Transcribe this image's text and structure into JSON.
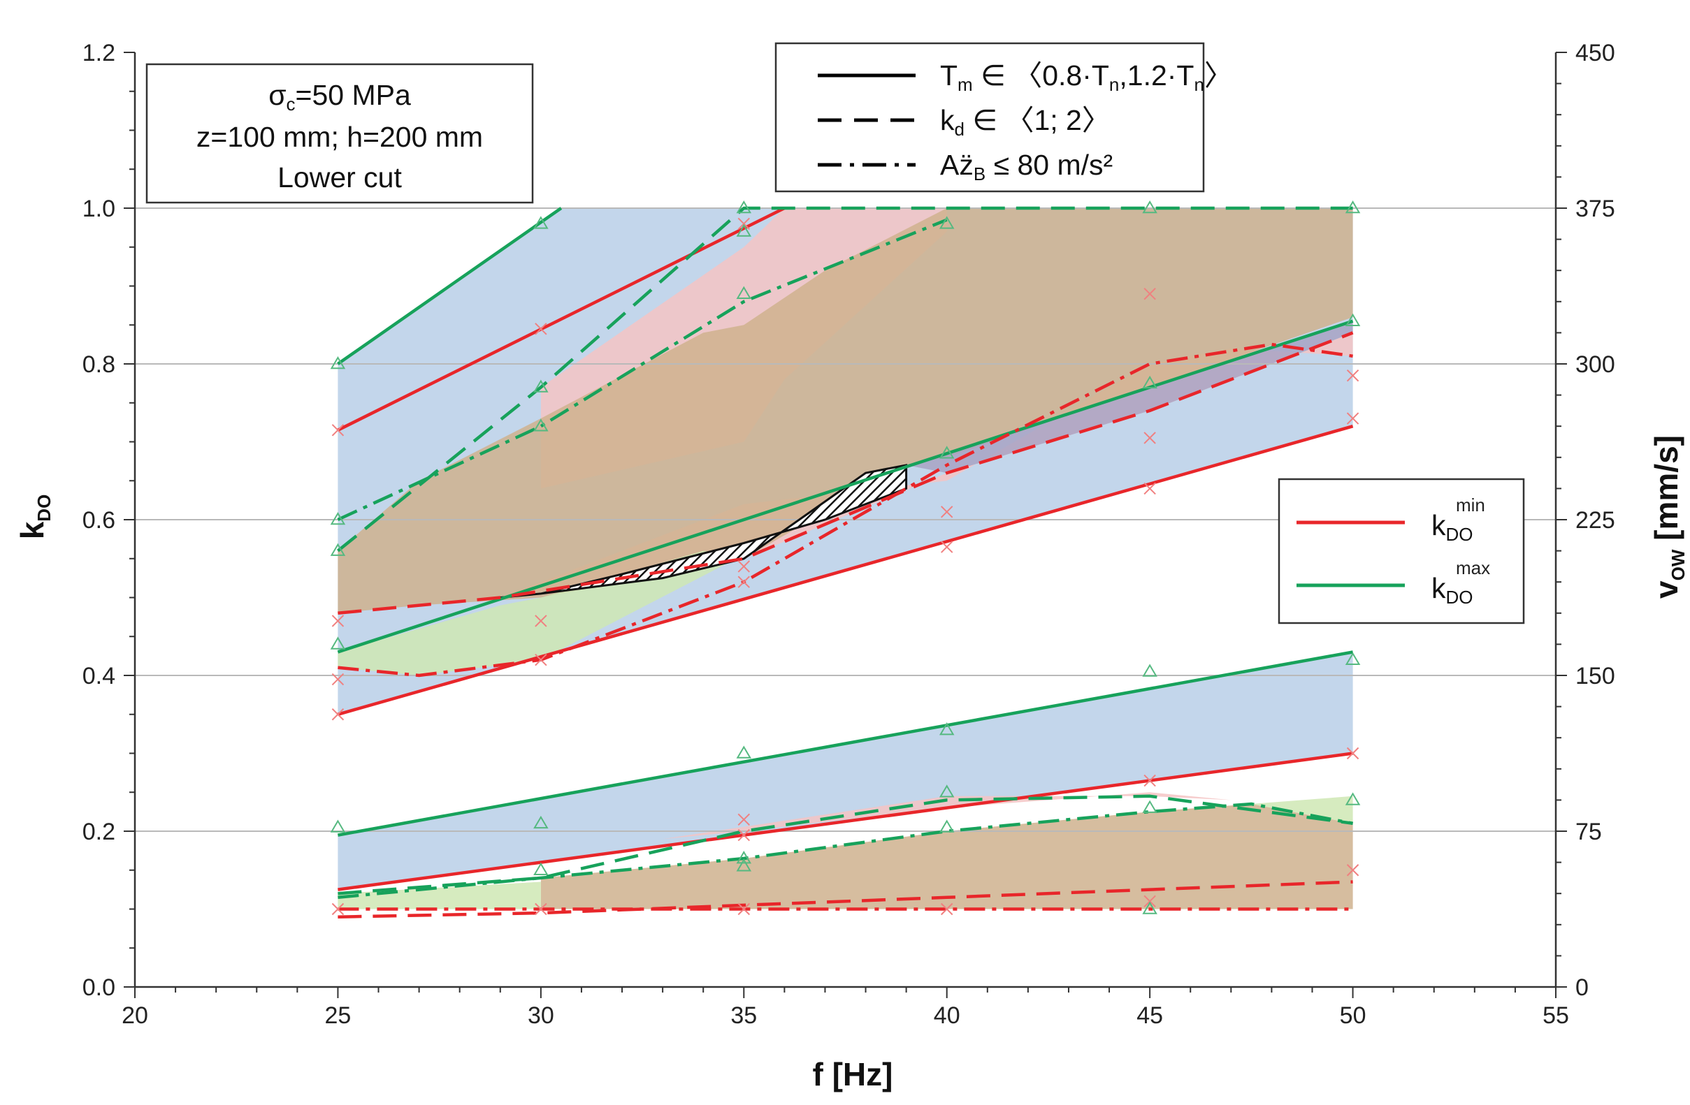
{
  "chart_data": {
    "type": "line",
    "title": "",
    "xlabel": "f  [Hz]",
    "ylabel": "k",
    "ylabel_sub": "DO",
    "y2label": "v",
    "y2label_sub": "OW",
    "y2label_unit": " [mm/s]",
    "xlim": [
      20,
      55
    ],
    "ylim": [
      0,
      1.2
    ],
    "y2lim": [
      0,
      450
    ],
    "xticks": [
      "20",
      "25",
      "30",
      "35",
      "40",
      "45",
      "50",
      "55"
    ],
    "yticks": [
      "0.0",
      "0.2",
      "0.4",
      "0.6",
      "0.8",
      "1.0",
      "1.2"
    ],
    "y2ticks": [
      "0",
      "75",
      "150",
      "225",
      "300",
      "375",
      "450"
    ],
    "grid": "horizontal",
    "conditions_box": {
      "line1_a": "σ",
      "line1_sub": "c",
      "line1_b": "=50 MPa",
      "line2": "z=100 mm; h=200 mm",
      "line3": "Lower cut"
    },
    "style_legend": {
      "solid_a": "T",
      "solid_sub": "m",
      "solid_b": " ∈ 〈0.8·T",
      "solid_sub2": "n",
      "solid_c": ",1.2·T",
      "solid_sub3": "n",
      "solid_d": "〉",
      "dashed_a": "k",
      "dashed_sub": "d",
      "dashed_b": " ∈ 〈1; 2〉",
      "dashdot_a": "Az̈",
      "dashdot_sub": "B",
      "dashdot_b": " ≤ 80 m/s²"
    },
    "color_legend": [
      {
        "name": "k",
        "sub": "DO",
        "sup": "min",
        "color": "#e8262a"
      },
      {
        "name": "k",
        "sub": "DO",
        "sup": "max",
        "color": "#17a25b"
      }
    ],
    "colors": {
      "kmin": "#e8262a",
      "kmax": "#17a25b",
      "fill_blue": "#b8cfe8",
      "fill_red": "#f5c4c4",
      "fill_green": "#cfe8b4",
      "fill_brown": "#cfb28e",
      "fill_purple": "#a8a3c4",
      "fill_teal": "#a7cfb5"
    },
    "fills": [
      {
        "color": "blue",
        "x": [
          25,
          30.5,
          50,
          50,
          25
        ],
        "y": [
          0.8,
          1.0,
          1.0,
          0.72,
          0.35
        ]
      },
      {
        "color": "blue",
        "x": [
          25,
          50,
          50,
          25
        ],
        "y": [
          0.195,
          0.43,
          0.3,
          0.125
        ]
      },
      {
        "color": "red",
        "x": [
          30,
          35,
          36,
          40,
          40,
          36,
          35,
          30
        ],
        "y": [
          0.77,
          0.95,
          1.0,
          1.0,
          0.97,
          0.78,
          0.7,
          0.64
        ]
      },
      {
        "color": "red",
        "x": [
          29,
          35,
          40,
          45,
          47,
          50,
          50,
          45,
          40,
          35,
          29
        ],
        "y": [
          0.5,
          0.62,
          0.65,
          0.8,
          0.82,
          0.81,
          0.84,
          0.74,
          0.66,
          0.55,
          0.5
        ]
      },
      {
        "color": "red",
        "x": [
          33,
          40,
          45,
          47,
          45,
          40,
          35,
          33
        ],
        "y": [
          0.19,
          0.245,
          0.245,
          0.24,
          0.25,
          0.23,
          0.2,
          0.19
        ]
      },
      {
        "color": "brown",
        "x": [
          25,
          27,
          30,
          34,
          35,
          37,
          40,
          50,
          50,
          45,
          40,
          39,
          35,
          30,
          27,
          25
        ],
        "y": [
          0.56,
          0.65,
          0.73,
          0.84,
          0.85,
          0.92,
          1.0,
          1.0,
          0.86,
          0.77,
          0.68,
          0.67,
          0.55,
          0.5,
          0.49,
          0.48
        ]
      },
      {
        "color": "brown",
        "x": [
          30,
          35,
          40,
          45,
          47.5,
          50,
          50,
          45,
          40,
          35,
          30
        ],
        "y": [
          0.14,
          0.165,
          0.2,
          0.225,
          0.235,
          0.21,
          0.1,
          0.1,
          0.1,
          0.1,
          0.1
        ]
      },
      {
        "color": "green",
        "x": [
          25,
          29,
          30,
          34,
          35,
          30,
          27,
          25
        ],
        "y": [
          0.43,
          0.49,
          0.5,
          0.56,
          0.555,
          0.42,
          0.4,
          0.41
        ]
      },
      {
        "color": "green",
        "x": [
          25,
          30,
          30,
          25
        ],
        "y": [
          0.12,
          0.135,
          0.1,
          0.1
        ]
      },
      {
        "color": "green",
        "x": [
          47.5,
          50,
          50
        ],
        "y": [
          0.235,
          0.245,
          0.21
        ]
      },
      {
        "color": "purple",
        "x": [
          39,
          45,
          48,
          50,
          50,
          45,
          40,
          39
        ],
        "y": [
          0.67,
          0.77,
          0.82,
          0.855,
          0.84,
          0.74,
          0.66,
          0.67
        ]
      }
    ],
    "feasible_region": {
      "x": [
        29,
        30,
        32,
        35,
        37,
        39,
        39,
        38,
        35,
        33,
        30,
        29
      ],
      "y": [
        0.5,
        0.505,
        0.53,
        0.57,
        0.6,
        0.64,
        0.67,
        0.66,
        0.55,
        0.525,
        0.505,
        0.5
      ]
    },
    "series": [
      {
        "group": "kmax",
        "style": "solid",
        "x": [
          25,
          30.5
        ],
        "y": [
          0.8,
          1.0
        ]
      },
      {
        "group": "kmin",
        "style": "solid",
        "x": [
          25,
          36
        ],
        "y": [
          0.715,
          1.0
        ]
      },
      {
        "group": "kmax",
        "style": "solid",
        "x": [
          25,
          50
        ],
        "y": [
          0.43,
          0.855
        ]
      },
      {
        "group": "kmin",
        "style": "solid",
        "x": [
          25,
          50
        ],
        "y": [
          0.35,
          0.72
        ]
      },
      {
        "group": "kmax",
        "style": "solid",
        "x": [
          25,
          50
        ],
        "y": [
          0.195,
          0.43
        ]
      },
      {
        "group": "kmin",
        "style": "solid",
        "x": [
          25,
          50
        ],
        "y": [
          0.125,
          0.3
        ]
      },
      {
        "group": "kmax",
        "style": "dashed",
        "x": [
          25,
          30,
          35,
          40,
          45,
          50
        ],
        "y": [
          0.56,
          0.77,
          1.0,
          1.0,
          1.0,
          1.0
        ]
      },
      {
        "group": "kmin",
        "style": "dashed",
        "x": [
          25,
          29,
          35,
          40,
          45,
          50
        ],
        "y": [
          0.48,
          0.5,
          0.55,
          0.66,
          0.74,
          0.84
        ]
      },
      {
        "group": "kmax",
        "style": "dashed",
        "x": [
          25,
          30,
          35,
          40,
          45,
          50
        ],
        "y": [
          0.12,
          0.14,
          0.2,
          0.24,
          0.245,
          0.21
        ]
      },
      {
        "group": "kmin",
        "style": "dashed",
        "x": [
          25,
          30,
          35,
          40,
          45,
          50
        ],
        "y": [
          0.09,
          0.095,
          0.105,
          0.115,
          0.125,
          0.135
        ]
      },
      {
        "group": "kmax",
        "style": "dashdot",
        "x": [
          25,
          30,
          35,
          40
        ],
        "y": [
          0.6,
          0.72,
          0.88,
          0.985
        ]
      },
      {
        "group": "kmin",
        "style": "dashdot",
        "x": [
          25,
          27,
          30,
          35,
          40,
          45,
          48,
          50
        ],
        "y": [
          0.41,
          0.4,
          0.42,
          0.52,
          0.67,
          0.8,
          0.825,
          0.81
        ]
      },
      {
        "group": "kmax",
        "style": "dashdot",
        "x": [
          25,
          30,
          35,
          40,
          45,
          47.5,
          50
        ],
        "y": [
          0.115,
          0.14,
          0.165,
          0.2,
          0.225,
          0.235,
          0.21
        ]
      },
      {
        "group": "kmin",
        "style": "dashdot",
        "x": [
          25,
          30,
          35,
          40,
          45,
          50
        ],
        "y": [
          0.1,
          0.1,
          0.1,
          0.1,
          0.1,
          0.1
        ]
      }
    ],
    "markers": {
      "kmin_cross": {
        "x": [
          25,
          30,
          35,
          25,
          30,
          35,
          40,
          45,
          50,
          25,
          30,
          35,
          40,
          45,
          50,
          25,
          35,
          45,
          50,
          25,
          30,
          35,
          40,
          45,
          50,
          35,
          45
        ],
        "y": [
          0.715,
          0.845,
          0.98,
          0.47,
          0.47,
          0.52,
          0.61,
          0.64,
          0.785,
          0.395,
          0.42,
          0.54,
          0.565,
          0.705,
          0.73,
          0.35,
          0.215,
          0.89,
          0.3,
          0.1,
          0.1,
          0.1,
          0.1,
          0.11,
          0.15,
          0.195,
          0.265
        ]
      },
      "kmax_triangle": {
        "x": [
          25,
          30,
          35,
          25,
          30,
          35,
          40,
          45,
          50,
          25,
          30,
          35,
          40,
          45,
          50,
          25,
          30,
          35,
          40,
          45,
          50,
          25,
          30,
          35,
          40,
          45,
          50,
          35,
          40,
          45
        ],
        "y": [
          0.8,
          0.98,
          1.0,
          0.6,
          0.72,
          0.89,
          0.98,
          1.0,
          1.0,
          0.56,
          0.77,
          0.97,
          0.685,
          0.775,
          0.855,
          0.44,
          0.21,
          0.3,
          0.33,
          0.405,
          0.42,
          0.205,
          0.15,
          0.165,
          0.25,
          0.23,
          0.24,
          0.155,
          0.205,
          0.1
        ]
      }
    }
  }
}
